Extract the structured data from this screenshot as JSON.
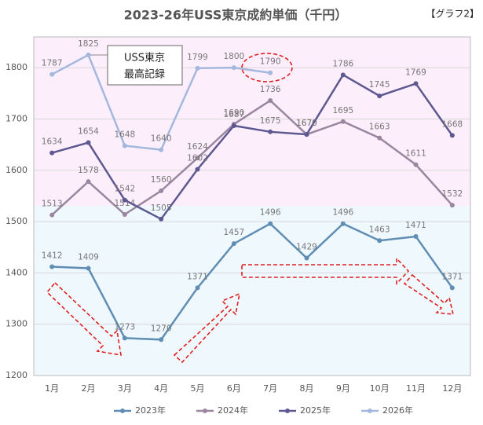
{
  "chart_data": {
    "type": "line",
    "title": "2023-26年USS東京成約単価（千円）",
    "corner_label": "【グラフ2】",
    "annotation": [
      "USS東京",
      "最高記録"
    ],
    "categories": [
      "1月",
      "2月",
      "3月",
      "4月",
      "5月",
      "6月",
      "7月",
      "8月",
      "9月",
      "10月",
      "11月",
      "12月"
    ],
    "series": [
      {
        "name": "2023年",
        "color": "#5f8db3",
        "values": [
          1412,
          1409,
          1273,
          1270,
          1371,
          1457,
          1496,
          1429,
          1496,
          1463,
          1471,
          1371
        ]
      },
      {
        "name": "2024年",
        "color": "#9a879f",
        "values": [
          1513,
          1578,
          1514,
          1560,
          1624,
          1690,
          1736,
          1670,
          1695,
          1663,
          1611,
          1532
        ]
      },
      {
        "name": "2025年",
        "color": "#5e5890",
        "values": [
          1634,
          1654,
          1542,
          1505,
          1602,
          1687,
          1675,
          1670,
          1786,
          1745,
          1769,
          1668
        ]
      },
      {
        "name": "2026年",
        "color": "#a3b8dc",
        "values": [
          1787,
          1825,
          1648,
          1640,
          1799,
          1800,
          1790,
          null,
          null,
          null,
          null,
          null
        ]
      }
    ],
    "ylim": [
      1200,
      1860
    ],
    "yticks": [
      1200,
      1300,
      1400,
      1500,
      1600,
      1700,
      1800
    ],
    "grid": true
  }
}
